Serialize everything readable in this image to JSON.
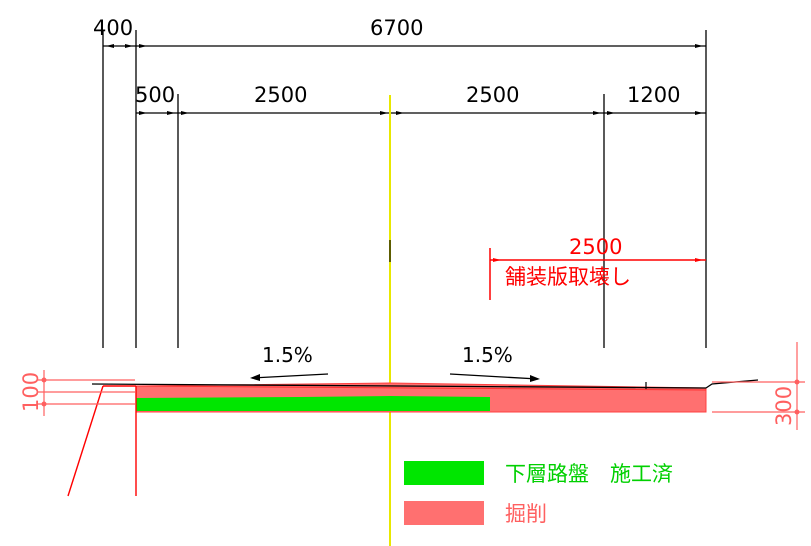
{
  "dimensions": {
    "top_left": "400",
    "overall": "6700",
    "left_offset": "500",
    "left_half": "2500",
    "right_half": "2500",
    "right_edge": "1200",
    "break_length": "2500"
  },
  "annotations": {
    "break_label": "舗装版取壊し",
    "slope_left": "1.5%",
    "slope_right": "1.5%",
    "left_side_height": "100",
    "right_side_height": "300"
  },
  "legend": {
    "items": [
      {
        "label": "下層路盤　施工済",
        "color": "#00e600"
      },
      {
        "label": "掘削",
        "color": "#ff7070"
      }
    ]
  },
  "colors": {
    "base_course": "#00e600",
    "excavation": "#ff7070",
    "centerline": "#ffff00",
    "dimension_red": "#ff0000",
    "line": "#000000"
  }
}
